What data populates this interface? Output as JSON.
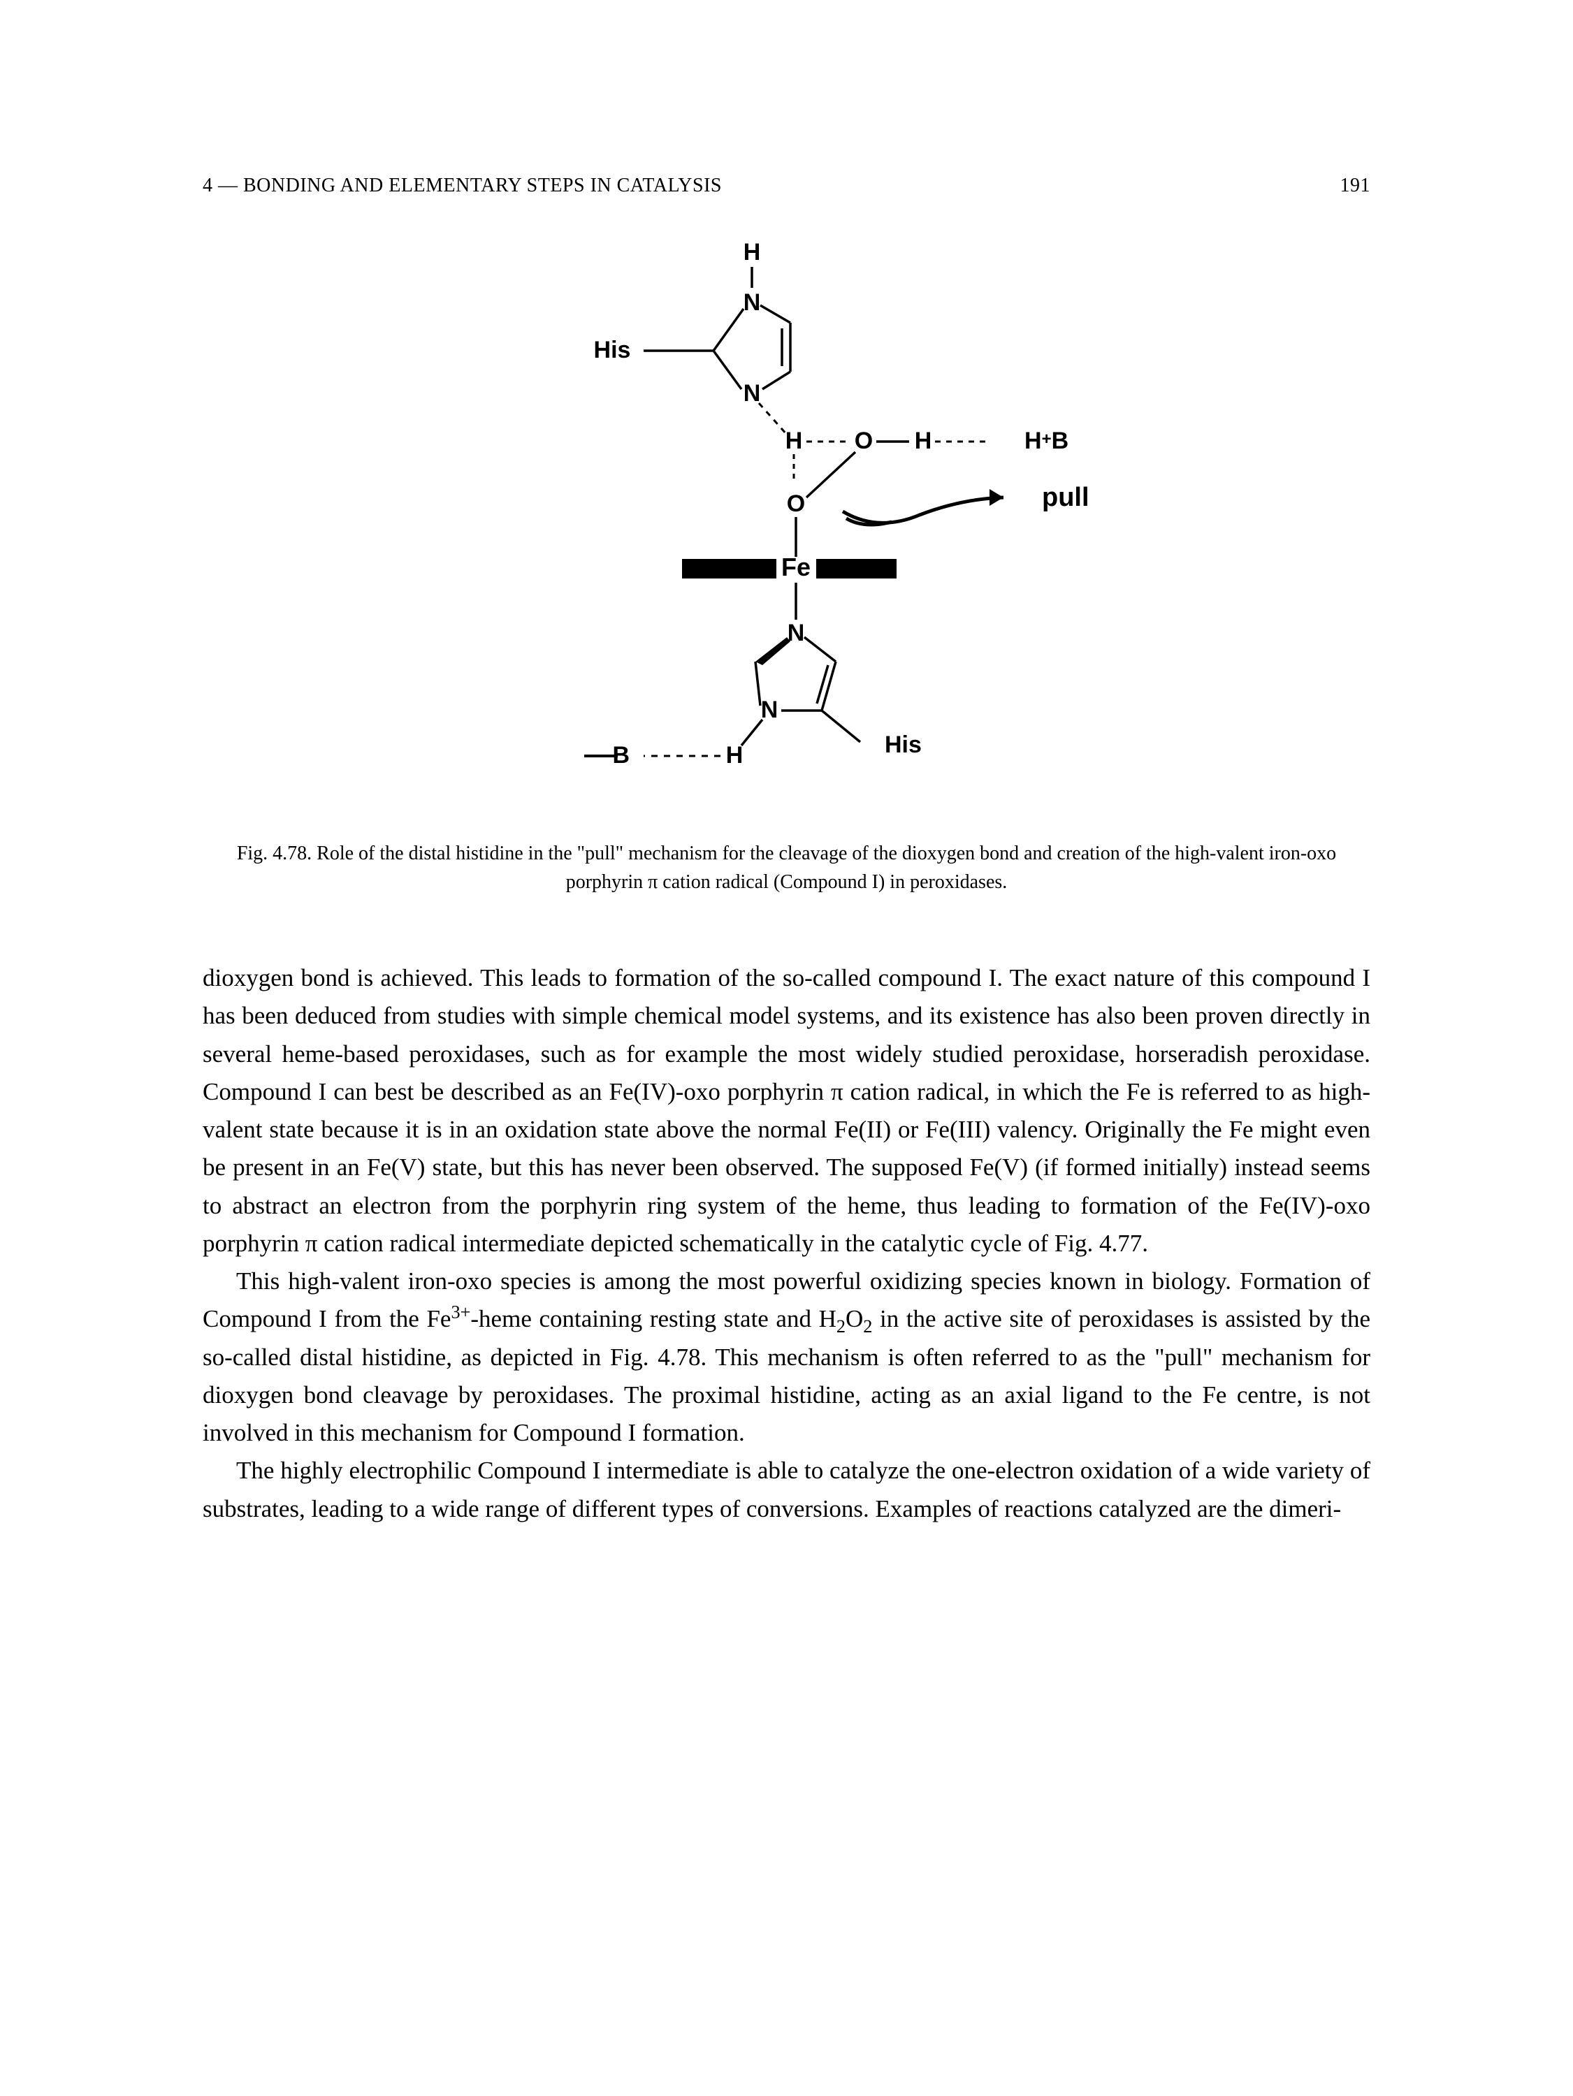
{
  "header": {
    "chapter": "4 — BONDING AND ELEMENTARY STEPS IN CATALYSIS",
    "page_number": "191"
  },
  "figure": {
    "type": "chemical-diagram",
    "labels": {
      "his_top": "His",
      "h_top": "H",
      "n_top1": "N",
      "n_top2": "N",
      "h_dash": "H",
      "o1": "O",
      "h_mid": "H",
      "hplusb": "H⁺B",
      "o2": "O",
      "pull": "pull",
      "fe": "Fe",
      "n_bot1": "N",
      "n_bot2": "N",
      "b_dash": "B",
      "h_bot": "H",
      "his_bot": "His"
    },
    "style": {
      "stroke": "#000000",
      "stroke_width": 3.5,
      "stroke_bold": 6,
      "font_family": "Arial, Helvetica, sans-serif",
      "label_fontsize": 34,
      "label_fontsize_bold": 38,
      "fe_bar_height": 28
    }
  },
  "caption": {
    "text_plain": "Fig. 4.78. Role of the distal histidine in the \"pull\" mechanism for the cleavage of the dioxygen bond and creation of the high-valent iron-oxo porphyrin π cation radical (Compound I) in peroxidases."
  },
  "paragraphs": {
    "p1_html": "dioxygen bond is achieved. This leads to formation of the so-called compound I. The exact nature of this compound I has been deduced from studies with simple chemical model systems, and its existence has also been proven directly in several heme-based peroxidases, such as for example the most widely studied peroxidase, horseradish peroxidase. Compound I can best be described as an Fe(IV)-oxo porphyrin π cation radical, in which the Fe is referred to as high-valent state because it is in an oxidation state above the normal Fe(II) or Fe(III) valency. Originally the Fe might even be present in an Fe(V) state, but this has never been observed. The supposed Fe(V) (if formed initially) instead seems to abstract an electron from the porphyrin ring system of the heme, thus leading to formation of the Fe(IV)-oxo porphyrin π cation radical intermediate depicted schematically in the catalytic cycle of Fig. 4.77.",
    "p2_html": "This high-valent iron-oxo species is among the most powerful oxidizing species known in biology. Formation of Compound I from the Fe<sup>3+</sup>-heme containing resting state and H<sub>2</sub>O<sub>2</sub> in the active site of peroxidases is assisted by the so-called distal histidine, as depicted in Fig. 4.78. This mechanism is often referred to as the \"pull\" mechanism for dioxygen bond cleavage by peroxidases. The proximal histidine, acting as an axial ligand to the Fe centre, is not involved in this mechanism for Compound I formation.",
    "p3_html": "The highly electrophilic Compound I intermediate is able to catalyze the one-electron oxidation of a wide variety of substrates, leading to a wide range of different types of conversions. Examples of reactions catalyzed are the dimeri-"
  },
  "colors": {
    "text": "#000000",
    "background": "#ffffff"
  }
}
